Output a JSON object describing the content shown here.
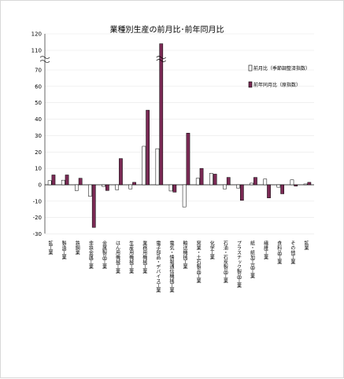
{
  "chart_data": {
    "type": "bar",
    "title": "業種別生産の前月比･前年同月比",
    "xlabel": "",
    "ylabel": "",
    "ylim": [
      -30,
      120
    ],
    "axis_break": [
      70,
      110
    ],
    "yticks": [
      -30,
      -20,
      -10,
      0,
      10,
      20,
      30,
      40,
      50,
      60,
      70,
      110,
      120
    ],
    "legend_position": "right",
    "categories": [
      "鉱工業",
      "製造工業",
      "鉄鋼業",
      "非鉄金属工業",
      "金属製品工業",
      "はん用機械工業",
      "生産用機械工業",
      "業務用機械工業",
      "電子部品・デバイス工業",
      "電気・情報通信機械工業",
      "輸送機械工業",
      "窯業・土石製品工業",
      "化学工業",
      "石油・石炭製品工業",
      "プラスチック製品工業",
      "紙・紙加工品工業",
      "繊維工業",
      "食料品工業",
      "その他工業",
      "鉱業"
    ],
    "series": [
      {
        "name": "前月比（季節調整済指数）",
        "color": "#ffffff",
        "values": [
          2.5,
          2.8,
          -3.5,
          -7.0,
          -1.0,
          -3.0,
          -2.5,
          23.5,
          22.0,
          -3.8,
          -13.5,
          4.0,
          7.0,
          -2.5,
          -2.0,
          1.0,
          3.5,
          -1.5,
          3.0,
          0.5
        ]
      },
      {
        "name": "前年同月比（原指数）",
        "color": "#7b2a55",
        "values": [
          6.0,
          6.0,
          4.0,
          -26.0,
          -3.5,
          16.0,
          1.5,
          45.5,
          114.0,
          -4.5,
          31.5,
          10.0,
          6.5,
          4.5,
          -9.5,
          4.5,
          -8.0,
          -5.5,
          -0.8,
          1.5
        ]
      }
    ]
  }
}
